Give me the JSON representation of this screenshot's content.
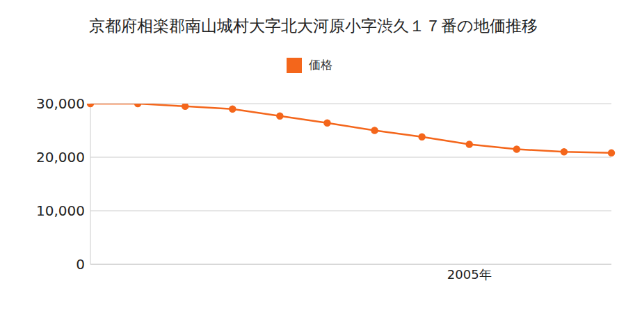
{
  "chart_data": {
    "type": "line",
    "title": "京都府相楽郡南山城村大字北大河原小字渋久１７番の地価推移",
    "categories": [
      null,
      null,
      null,
      null,
      null,
      null,
      null,
      null,
      "2005年",
      null,
      null,
      null
    ],
    "series": [
      {
        "name": "価格",
        "color": "#f4661b",
        "values": [
          30000,
          30000,
          29500,
          29000,
          27700,
          26400,
          25000,
          23800,
          22400,
          21500,
          21000,
          20800
        ]
      }
    ],
    "ylim": [
      0,
      30000
    ],
    "yticks": [
      {
        "value": 0,
        "label": "0"
      },
      {
        "value": 10000,
        "label": "10,000"
      },
      {
        "value": 20000,
        "label": "20,000"
      },
      {
        "value": 30000,
        "label": "30,000"
      }
    ],
    "grid": true,
    "marker": "circle"
  }
}
